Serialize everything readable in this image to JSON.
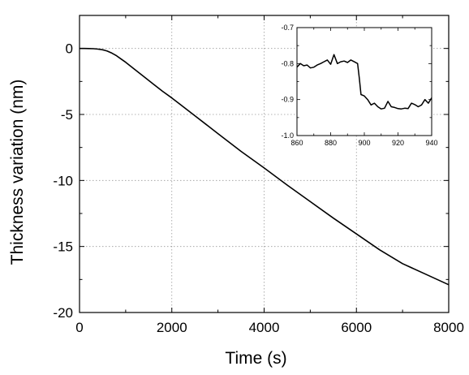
{
  "chart_data": [
    {
      "type": "line",
      "title": "",
      "xlabel": "Time (s)",
      "ylabel": "Thickness variation (nm)",
      "xlim": [
        0,
        8000
      ],
      "ylim": [
        -20,
        2.5
      ],
      "xticks": [
        0,
        2000,
        4000,
        6000,
        8000
      ],
      "yticks": [
        0,
        -5,
        -10,
        -15,
        -20
      ],
      "xtick_labels": [
        "0",
        "2000",
        "4000",
        "6000",
        "8000"
      ],
      "ytick_labels": [
        "0",
        "-5",
        "-10",
        "-15",
        "-20"
      ],
      "grid": true,
      "legend": "none",
      "line_color": "#000000",
      "series": [
        {
          "x": [
            0,
            100,
            200,
            300,
            400,
            500,
            600,
            700,
            800,
            900,
            1000,
            1200,
            1400,
            1600,
            1800,
            2000,
            2500,
            3000,
            3500,
            4000,
            4500,
            5000,
            5500,
            6000,
            6500,
            7000,
            7500,
            8000
          ],
          "y": [
            0,
            0,
            -0.01,
            -0.02,
            -0.05,
            -0.1,
            -0.2,
            -0.35,
            -0.55,
            -0.8,
            -1.05,
            -1.6,
            -2.15,
            -2.7,
            -3.25,
            -3.75,
            -5.1,
            -6.45,
            -7.8,
            -9.05,
            -10.35,
            -11.6,
            -12.85,
            -14.05,
            -15.25,
            -16.3,
            -17.1,
            -17.9
          ]
        }
      ]
    },
    {
      "type": "line",
      "title": "",
      "xlabel": "",
      "ylabel": "",
      "xlim": [
        860,
        940
      ],
      "ylim": [
        -1.0,
        -0.7
      ],
      "xticks": [
        860,
        880,
        900,
        920,
        940
      ],
      "yticks": [
        -0.7,
        -0.8,
        -0.9,
        -1.0
      ],
      "xtick_labels": [
        "860",
        "880",
        "900",
        "920",
        "940"
      ],
      "ytick_labels": [
        "-0.7",
        "-0.8",
        "-0.9",
        "-1.0"
      ],
      "grid": false,
      "legend": "none",
      "line_color": "#000000",
      "series": [
        {
          "x": [
            860,
            862,
            864,
            866,
            868,
            870,
            872,
            874,
            876,
            878,
            880,
            882,
            884,
            886,
            888,
            890,
            892,
            894,
            896,
            897,
            898,
            900,
            902,
            904,
            906,
            908,
            910,
            912,
            914,
            916,
            918,
            920,
            922,
            924,
            926,
            928,
            930,
            932,
            934,
            936,
            938,
            940
          ],
          "y": [
            -0.81,
            -0.8,
            -0.806,
            -0.804,
            -0.812,
            -0.81,
            -0.804,
            -0.8,
            -0.795,
            -0.79,
            -0.802,
            -0.775,
            -0.8,
            -0.795,
            -0.793,
            -0.797,
            -0.79,
            -0.795,
            -0.8,
            -0.84,
            -0.886,
            -0.89,
            -0.9,
            -0.915,
            -0.91,
            -0.92,
            -0.926,
            -0.924,
            -0.905,
            -0.92,
            -0.922,
            -0.925,
            -0.926,
            -0.924,
            -0.925,
            -0.91,
            -0.914,
            -0.92,
            -0.915,
            -0.9,
            -0.91,
            -0.895
          ]
        }
      ]
    }
  ]
}
